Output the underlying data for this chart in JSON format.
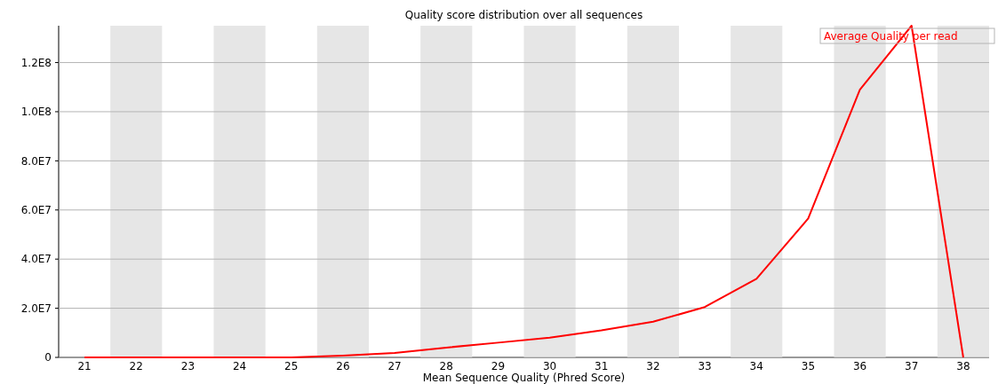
{
  "chart_data": {
    "type": "line",
    "title": "Quality score distribution over all sequences",
    "xlabel": "Mean Sequence Quality (Phred Score)",
    "categories": [
      "21",
      "22",
      "23",
      "24",
      "25",
      "26",
      "27",
      "28",
      "29",
      "30",
      "31",
      "32",
      "33",
      "34",
      "35",
      "36",
      "37",
      "38"
    ],
    "series": [
      {
        "name": "Average Quality per read",
        "color": "#ff0000",
        "values": [
          0,
          0,
          0,
          0,
          0,
          700000,
          1800000,
          4000000,
          6000000,
          8000000,
          11000000,
          14500000,
          20500000,
          32000000,
          56500000,
          109000000,
          135000000,
          0
        ]
      }
    ],
    "ylim": [
      0,
      135000000
    ],
    "yticks": [
      0,
      {
        "value": 20000000,
        "label": "2.0E7"
      },
      {
        "value": 40000000,
        "label": "4.0E7"
      },
      {
        "value": 60000000,
        "label": "6.0E7"
      },
      {
        "value": 80000000,
        "label": "8.0E7"
      },
      {
        "value": 100000000,
        "label": "1.0E8"
      },
      {
        "value": 120000000,
        "label": "1.2E8"
      }
    ],
    "grid": "y",
    "legend": "top right",
    "marker": "none",
    "line_style": "solid"
  }
}
